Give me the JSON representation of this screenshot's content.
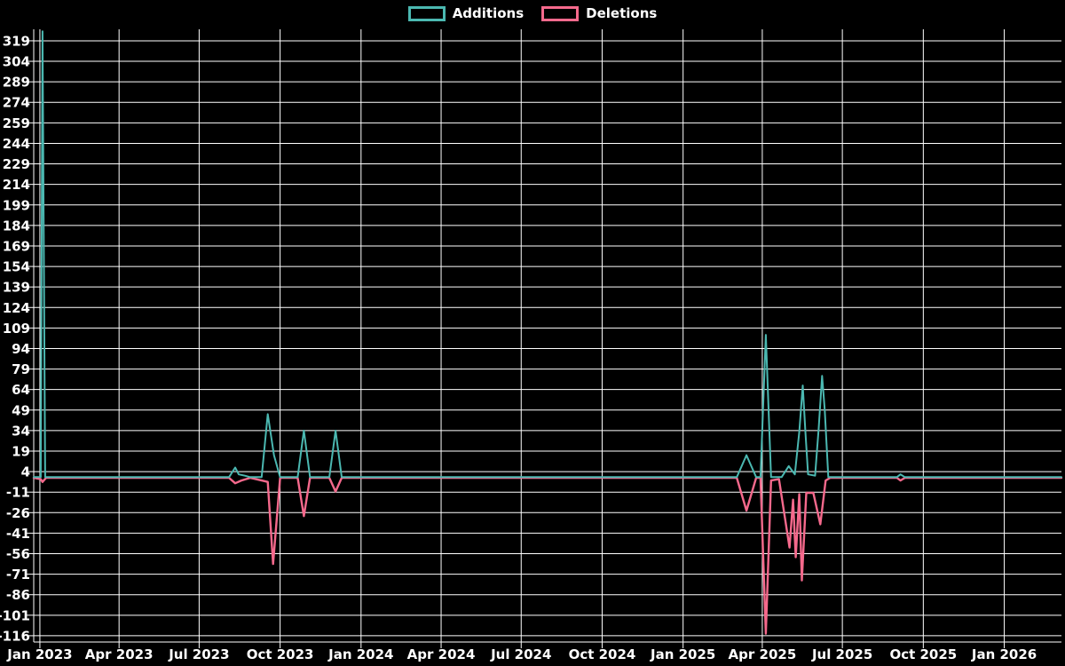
{
  "page": {
    "background": "#000000"
  },
  "chart_data": {
    "type": "line",
    "title": "",
    "legend_position": "top-center",
    "grid": true,
    "grid_color": "#ffffff",
    "background": "#000000",
    "label_color": "#ffffff",
    "x_axis": {
      "range": [
        "2022-12-25",
        "2026-03-07"
      ],
      "ticks": [
        {
          "label": "Jan 2023",
          "date": "2023-01-01"
        },
        {
          "label": "Apr 2023",
          "date": "2023-04-01"
        },
        {
          "label": "Jul 2023",
          "date": "2023-07-01"
        },
        {
          "label": "Oct 2023",
          "date": "2023-10-01"
        },
        {
          "label": "Jan 2024",
          "date": "2024-01-01"
        },
        {
          "label": "Apr 2024",
          "date": "2024-04-01"
        },
        {
          "label": "Jul 2024",
          "date": "2024-07-01"
        },
        {
          "label": "Oct 2024",
          "date": "2024-10-01"
        },
        {
          "label": "Jan 2025",
          "date": "2025-01-01"
        },
        {
          "label": "Apr 2025",
          "date": "2025-04-01"
        },
        {
          "label": "Jul 2025",
          "date": "2025-07-01"
        },
        {
          "label": "Oct 2025",
          "date": "2025-10-01"
        },
        {
          "label": "Jan 2026",
          "date": "2026-01-01"
        }
      ]
    },
    "y_axis": {
      "range": [
        -120.6,
        327.4
      ],
      "tick_step": 15,
      "ticks": [
        319,
        304,
        289,
        274,
        259,
        244,
        229,
        214,
        199,
        184,
        169,
        154,
        139,
        124,
        109,
        94,
        79,
        64,
        49,
        34,
        19,
        4,
        -11,
        -26,
        -41,
        -56,
        -71,
        -86,
        -101,
        -116
      ]
    },
    "series": [
      {
        "name": "Additions",
        "color": "#4bb8b1",
        "points": [
          [
            "2022-12-25",
            0
          ],
          [
            "2023-01-02",
            0
          ],
          [
            "2023-01-04",
            326
          ],
          [
            "2023-01-07",
            0
          ],
          [
            "2023-08-04",
            0
          ],
          [
            "2023-08-11",
            7
          ],
          [
            "2023-08-15",
            2
          ],
          [
            "2023-08-22",
            1
          ],
          [
            "2023-08-28",
            0
          ],
          [
            "2023-09-10",
            0
          ],
          [
            "2023-09-17",
            46
          ],
          [
            "2023-09-24",
            16
          ],
          [
            "2023-10-01",
            0
          ],
          [
            "2023-10-21",
            0
          ],
          [
            "2023-10-28",
            34
          ],
          [
            "2023-11-04",
            0
          ],
          [
            "2023-11-26",
            0
          ],
          [
            "2023-12-03",
            34
          ],
          [
            "2023-12-10",
            0
          ],
          [
            "2025-03-03",
            0
          ],
          [
            "2025-03-14",
            16
          ],
          [
            "2025-03-25",
            0
          ],
          [
            "2025-03-30",
            0
          ],
          [
            "2025-04-05",
            104
          ],
          [
            "2025-04-11",
            0
          ],
          [
            "2025-04-23",
            0
          ],
          [
            "2025-05-01",
            8
          ],
          [
            "2025-05-08",
            2
          ],
          [
            "2025-05-13",
            33
          ],
          [
            "2025-05-17",
            67
          ],
          [
            "2025-05-20",
            33
          ],
          [
            "2025-05-23",
            2
          ],
          [
            "2025-05-31",
            1
          ],
          [
            "2025-06-04",
            35
          ],
          [
            "2025-06-08",
            74
          ],
          [
            "2025-06-11",
            49
          ],
          [
            "2025-06-15",
            0
          ],
          [
            "2025-09-01",
            0
          ],
          [
            "2025-09-05",
            2
          ],
          [
            "2025-09-10",
            0
          ],
          [
            "2026-03-07",
            0
          ]
        ]
      },
      {
        "name": "Deletions",
        "color": "#f5698c",
        "points": [
          [
            "2022-12-25",
            0
          ],
          [
            "2023-01-02",
            -1
          ],
          [
            "2023-01-04",
            -3
          ],
          [
            "2023-01-08",
            0
          ],
          [
            "2023-08-04",
            0
          ],
          [
            "2023-08-11",
            -4
          ],
          [
            "2023-08-18",
            -2
          ],
          [
            "2023-08-28",
            0
          ],
          [
            "2023-09-10",
            -2
          ],
          [
            "2023-09-17",
            -3
          ],
          [
            "2023-09-23",
            -63
          ],
          [
            "2023-10-01",
            0
          ],
          [
            "2023-10-21",
            0
          ],
          [
            "2023-10-28",
            -28
          ],
          [
            "2023-11-04",
            0
          ],
          [
            "2023-11-26",
            0
          ],
          [
            "2023-12-03",
            -10
          ],
          [
            "2023-12-10",
            0
          ],
          [
            "2025-03-03",
            0
          ],
          [
            "2025-03-14",
            -24
          ],
          [
            "2025-03-25",
            0
          ],
          [
            "2025-03-30",
            0
          ],
          [
            "2025-04-05",
            -114
          ],
          [
            "2025-04-11",
            -2
          ],
          [
            "2025-04-20",
            -1
          ],
          [
            "2025-05-02",
            -51
          ],
          [
            "2025-05-06",
            -16
          ],
          [
            "2025-05-09",
            -58
          ],
          [
            "2025-05-13",
            -12
          ],
          [
            "2025-05-16",
            -75
          ],
          [
            "2025-05-21",
            -11
          ],
          [
            "2025-05-29",
            -11
          ],
          [
            "2025-06-06",
            -34
          ],
          [
            "2025-06-12",
            -2
          ],
          [
            "2025-06-17",
            0
          ],
          [
            "2025-09-01",
            0
          ],
          [
            "2025-09-05",
            -2
          ],
          [
            "2025-09-10",
            0
          ],
          [
            "2026-03-07",
            0
          ]
        ]
      }
    ]
  }
}
